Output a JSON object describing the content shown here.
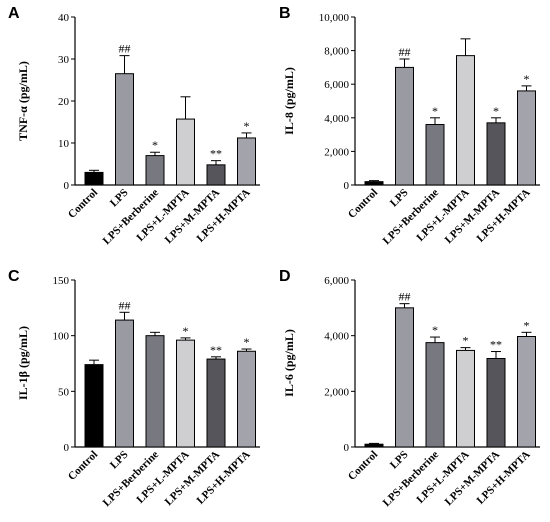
{
  "colors": {
    "Control": "#000000",
    "LPS": "#9a9aa2",
    "LPS+Berberine": "#787880",
    "LPS+L-MPTA": "#cfcfd2",
    "LPS+M-MPTA": "#55555b",
    "LPS+H-MPTA": "#a3a3ab"
  },
  "chart_data": [
    {
      "type": "bar",
      "panel": "A",
      "ylabel": "TNF-α (pg/mL)",
      "categories": [
        "Control",
        "LPS",
        "LPS+Berberine",
        "LPS+L-MPTA",
        "LPS+M-MPTA",
        "LPS+H-MPTA"
      ],
      "values": [
        3,
        26.5,
        7,
        15.7,
        4.8,
        11.2
      ],
      "errors": [
        0.5,
        4.3,
        0.8,
        5.3,
        1.0,
        1.2
      ],
      "significance": [
        "",
        "##",
        "*",
        "",
        "**",
        "*"
      ],
      "ylim": [
        0,
        40
      ],
      "yticks": [
        0,
        10,
        20,
        30,
        40
      ],
      "ytick_labels": [
        "0",
        "10",
        "20",
        "30",
        "40"
      ]
    },
    {
      "type": "bar",
      "panel": "B",
      "ylabel": "IL-8 (pg/mL)",
      "categories": [
        "Control",
        "LPS",
        "LPS+Berberine",
        "LPS+L-MPTA",
        "LPS+M-MPTA",
        "LPS+H-MPTA"
      ],
      "values": [
        200,
        7000,
        3600,
        7700,
        3700,
        5600
      ],
      "errors": [
        60,
        500,
        400,
        1000,
        300,
        300
      ],
      "significance": [
        "",
        "##",
        "*",
        "",
        "*",
        "*"
      ],
      "ylim": [
        0,
        10000
      ],
      "yticks": [
        0,
        2000,
        4000,
        6000,
        8000,
        10000
      ],
      "ytick_labels": [
        "0",
        "2,000",
        "4,000",
        "6,000",
        "8,000",
        "10,000"
      ]
    },
    {
      "type": "bar",
      "panel": "C",
      "ylabel": "IL-1β (pg/mL)",
      "categories": [
        "Control",
        "LPS",
        "LPS+Berberine",
        "LPS+L-MPTA",
        "LPS+M-MPTA",
        "LPS+H-MPTA"
      ],
      "values": [
        74,
        114,
        100,
        96,
        79,
        86
      ],
      "errors": [
        4,
        7,
        3,
        2,
        2,
        2
      ],
      "significance": [
        "",
        "##",
        "",
        "*",
        "**",
        "*"
      ],
      "ylim": [
        0,
        150
      ],
      "yticks": [
        0,
        50,
        100,
        150
      ],
      "ytick_labels": [
        "0",
        "50",
        "100",
        "150"
      ]
    },
    {
      "type": "bar",
      "panel": "D",
      "ylabel": "IL-6 (pg/mL)",
      "categories": [
        "Control",
        "LPS",
        "LPS+Berberine",
        "LPS+L-MPTA",
        "LPS+M-MPTA",
        "LPS+H-MPTA"
      ],
      "values": [
        100,
        5000,
        3750,
        3470,
        3180,
        3970
      ],
      "errors": [
        30,
        150,
        200,
        100,
        250,
        150
      ],
      "significance": [
        "",
        "##",
        "*",
        "*",
        "**",
        "*"
      ],
      "ylim": [
        0,
        6000
      ],
      "yticks": [
        0,
        2000,
        4000,
        6000
      ],
      "ytick_labels": [
        "0",
        "2,000",
        "4,000",
        "6,000"
      ]
    }
  ]
}
